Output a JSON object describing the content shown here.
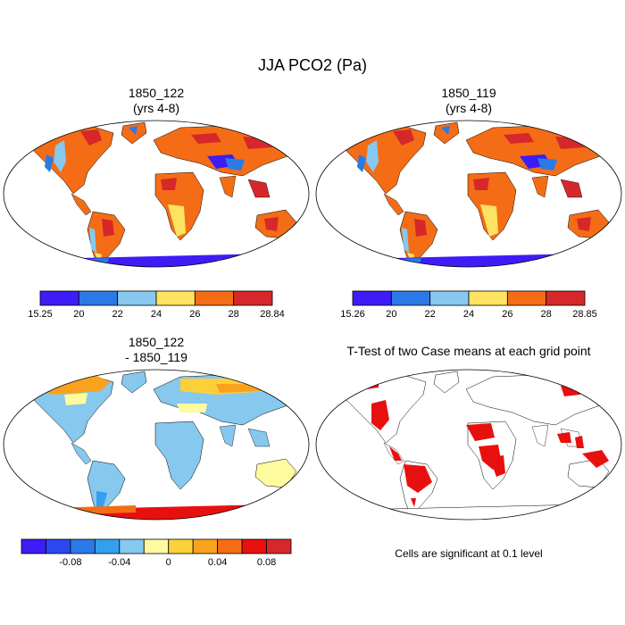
{
  "figure": {
    "title": "JJA PCO2 (Pa)"
  },
  "panels": [
    {
      "id": "case1",
      "title_line1": "1850_122",
      "title_line2": "(yrs 4-8)",
      "colorbar": {
        "colors": [
          "#3e1cf5",
          "#2a79e6",
          "#86c8ee",
          "#fde361",
          "#f46d16",
          "#d6282a"
        ],
        "labels": [
          "15.25",
          "20",
          "22",
          "24",
          "26",
          "28",
          "28.84"
        ]
      }
    },
    {
      "id": "case2",
      "title_line1": "1850_119",
      "title_line2": "(yrs 4-8)",
      "colorbar": {
        "colors": [
          "#3e1cf5",
          "#2a79e6",
          "#86c8ee",
          "#fde361",
          "#f46d16",
          "#d6282a"
        ],
        "labels": [
          "15.26",
          "20",
          "22",
          "24",
          "26",
          "28",
          "28.85"
        ]
      }
    },
    {
      "id": "diff",
      "title_line1": "1850_122",
      "title_line2": "- 1850_119",
      "colorbar": {
        "colors": [
          "#3e1cf5",
          "#2b47ee",
          "#2a79e6",
          "#32a0ee",
          "#86c8ee",
          "#fefaa0",
          "#fdd03a",
          "#f9a21e",
          "#f46d16",
          "#e8100f",
          "#d6282a"
        ],
        "labels": [
          "-0.08",
          "-0.04",
          "0",
          "0.04",
          "0.08"
        ]
      }
    },
    {
      "id": "ttest",
      "title_line1": "T-Test of two Case means at each grid point",
      "note": "Cells are significant at 0.1 level",
      "significant_color": "#e8100f"
    }
  ]
}
